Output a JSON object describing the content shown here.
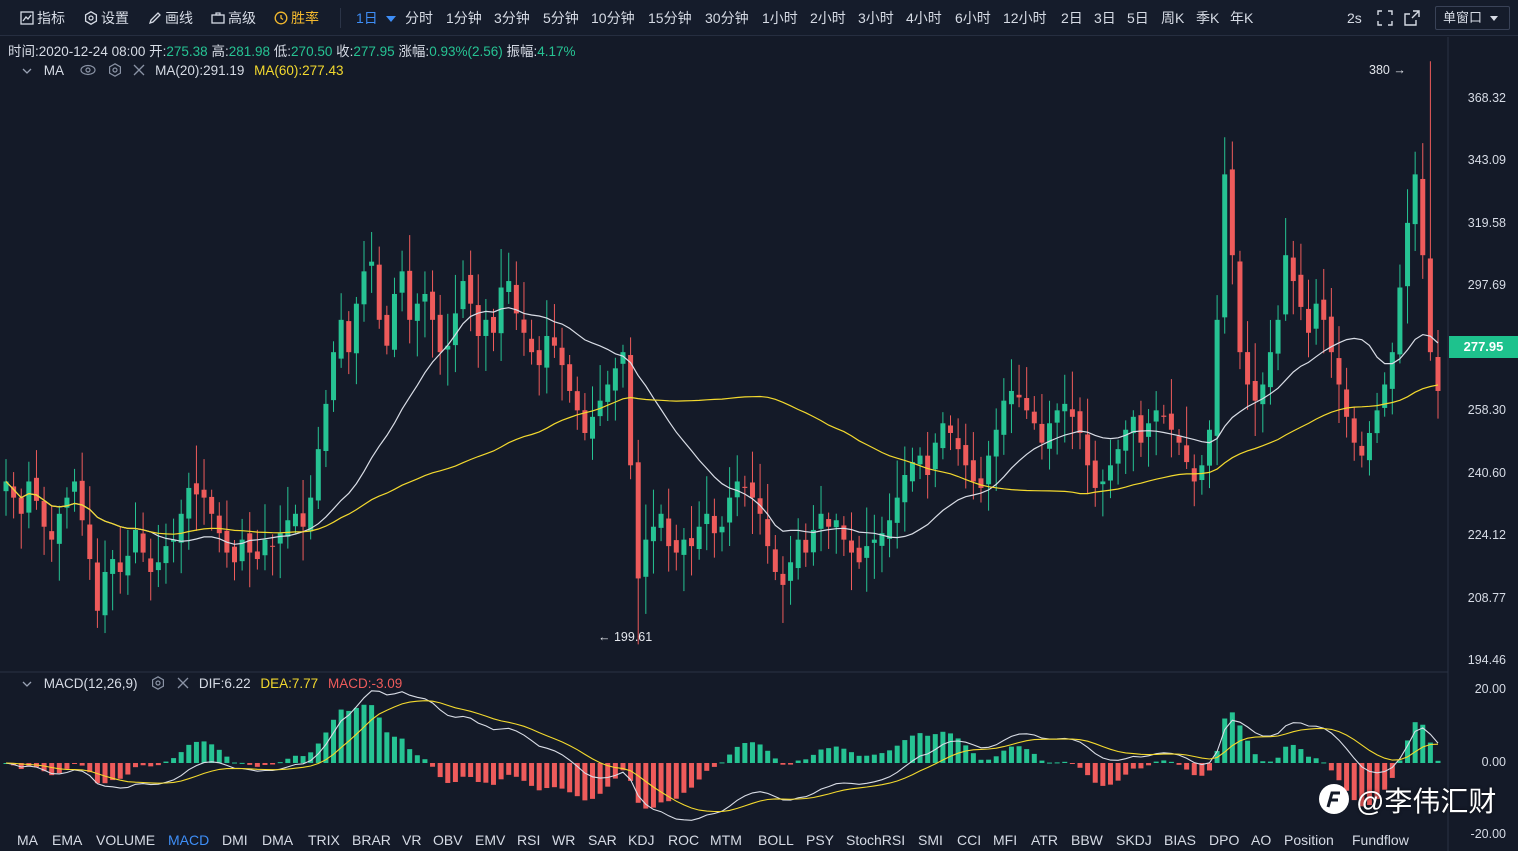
{
  "toolbar": {
    "indicators": "指标",
    "settings": "设置",
    "draw": "画线",
    "advanced": "高级",
    "winrate": "胜率",
    "interval_selected": "1日",
    "timeframes": [
      "分时",
      "1分钟",
      "3分钟",
      "5分钟",
      "10分钟",
      "15分钟",
      "30分钟",
      "1小时",
      "2小时",
      "3小时",
      "4小时",
      "6小时",
      "12小时",
      "2日",
      "3日",
      "5日",
      "周K",
      "季K",
      "年K"
    ],
    "refresh": "2s",
    "window_mode": "单窗口"
  },
  "ohlc": {
    "time_label": "时间:",
    "time": "2020-12-24 08:00",
    "open_label": "开:",
    "open": "275.38",
    "high_label": "高:",
    "high": "281.98",
    "low_label": "低:",
    "low": "270.50",
    "close_label": "收:",
    "close": "277.95",
    "change_label": "涨幅:",
    "change": "0.93%(2.56)",
    "amplitude_label": "振幅:",
    "amplitude": "4.17%"
  },
  "ma_legend": {
    "name": "MA",
    "ma20": "MA(20):291.19",
    "ma60": "MA(60):277.43"
  },
  "macd_legend": {
    "name": "MACD(12,26,9)",
    "dif": "DIF:6.22",
    "dea": "DEA:7.77",
    "macd": "MACD:-3.09"
  },
  "price_axis": [
    "368.32",
    "343.09",
    "319.58",
    "297.69",
    "258.30",
    "240.60",
    "224.12",
    "208.77",
    "194.46"
  ],
  "current_price": "277.95",
  "annotations": {
    "high": "380 →",
    "low": "← 199.61"
  },
  "macd_axis": [
    "20.00",
    "0.00",
    "-20.00"
  ],
  "indicator_tabs": [
    "MA",
    "EMA",
    "VOLUME",
    "MACD",
    "DMI",
    "DMA",
    "TRIX",
    "BRAR",
    "VR",
    "OBV",
    "EMV",
    "RSI",
    "WR",
    "SAR",
    "KDJ",
    "ROC",
    "MTM",
    "BOLL",
    "PSY",
    "StochRSI",
    "SMI",
    "CCI",
    "MFI",
    "ATR",
    "BBW",
    "SKDJ",
    "BIAS",
    "DPO",
    "AO",
    "Position",
    "Fundflow"
  ],
  "active_indicator": "MACD",
  "watermark": "@李伟汇财",
  "colors": {
    "up": "#26c393",
    "down": "#ee5b5b",
    "ma20": "#d9dde6",
    "ma60": "#f3d92e",
    "accent": "#3e8ef7",
    "bg": "#141a28"
  },
  "chart_data": {
    "type": "candlestick",
    "price_range": [
      194.46,
      380
    ],
    "macd_range": [
      -20,
      20
    ],
    "closes": [
      250,
      245,
      240,
      250,
      244,
      236,
      232,
      240,
      245,
      250,
      238,
      226,
      210,
      222,
      226,
      222,
      227,
      235,
      228,
      222,
      225,
      230,
      232,
      240,
      248,
      246,
      245,
      240,
      234,
      228,
      225,
      232,
      228,
      226,
      232,
      230,
      234,
      238,
      240,
      236,
      245,
      260,
      274,
      290,
      300,
      290,
      305,
      315,
      318,
      300,
      292,
      308,
      315,
      300,
      305,
      308,
      300,
      290,
      292,
      302,
      312,
      305,
      295,
      300,
      296,
      310,
      312,
      302,
      296,
      290,
      286,
      295,
      292,
      286,
      278,
      272,
      265,
      270,
      275,
      280,
      285,
      290,
      255,
      220,
      232,
      236,
      240,
      230,
      228,
      232,
      230,
      236,
      240,
      234,
      236,
      245,
      250,
      248,
      245,
      240,
      230,
      222,
      218,
      225,
      232,
      228,
      235,
      240,
      236,
      238,
      232,
      228,
      225,
      230,
      232,
      234,
      238,
      245,
      252,
      256,
      258,
      252,
      262,
      268,
      265,
      260,
      255,
      250,
      248,
      258,
      266,
      275,
      278,
      276,
      272,
      268,
      262,
      268,
      272,
      274,
      270,
      265,
      255,
      248,
      250,
      255,
      260,
      266,
      270,
      262,
      268,
      272,
      270,
      266,
      262,
      256,
      250,
      255,
      266,
      300,
      345,
      320,
      290,
      280,
      275,
      280,
      290,
      300,
      320,
      312,
      304,
      296,
      305,
      300,
      290,
      280,
      270,
      262,
      258,
      265,
      272,
      280,
      290,
      310,
      330,
      345,
      320,
      290,
      278
    ]
  }
}
